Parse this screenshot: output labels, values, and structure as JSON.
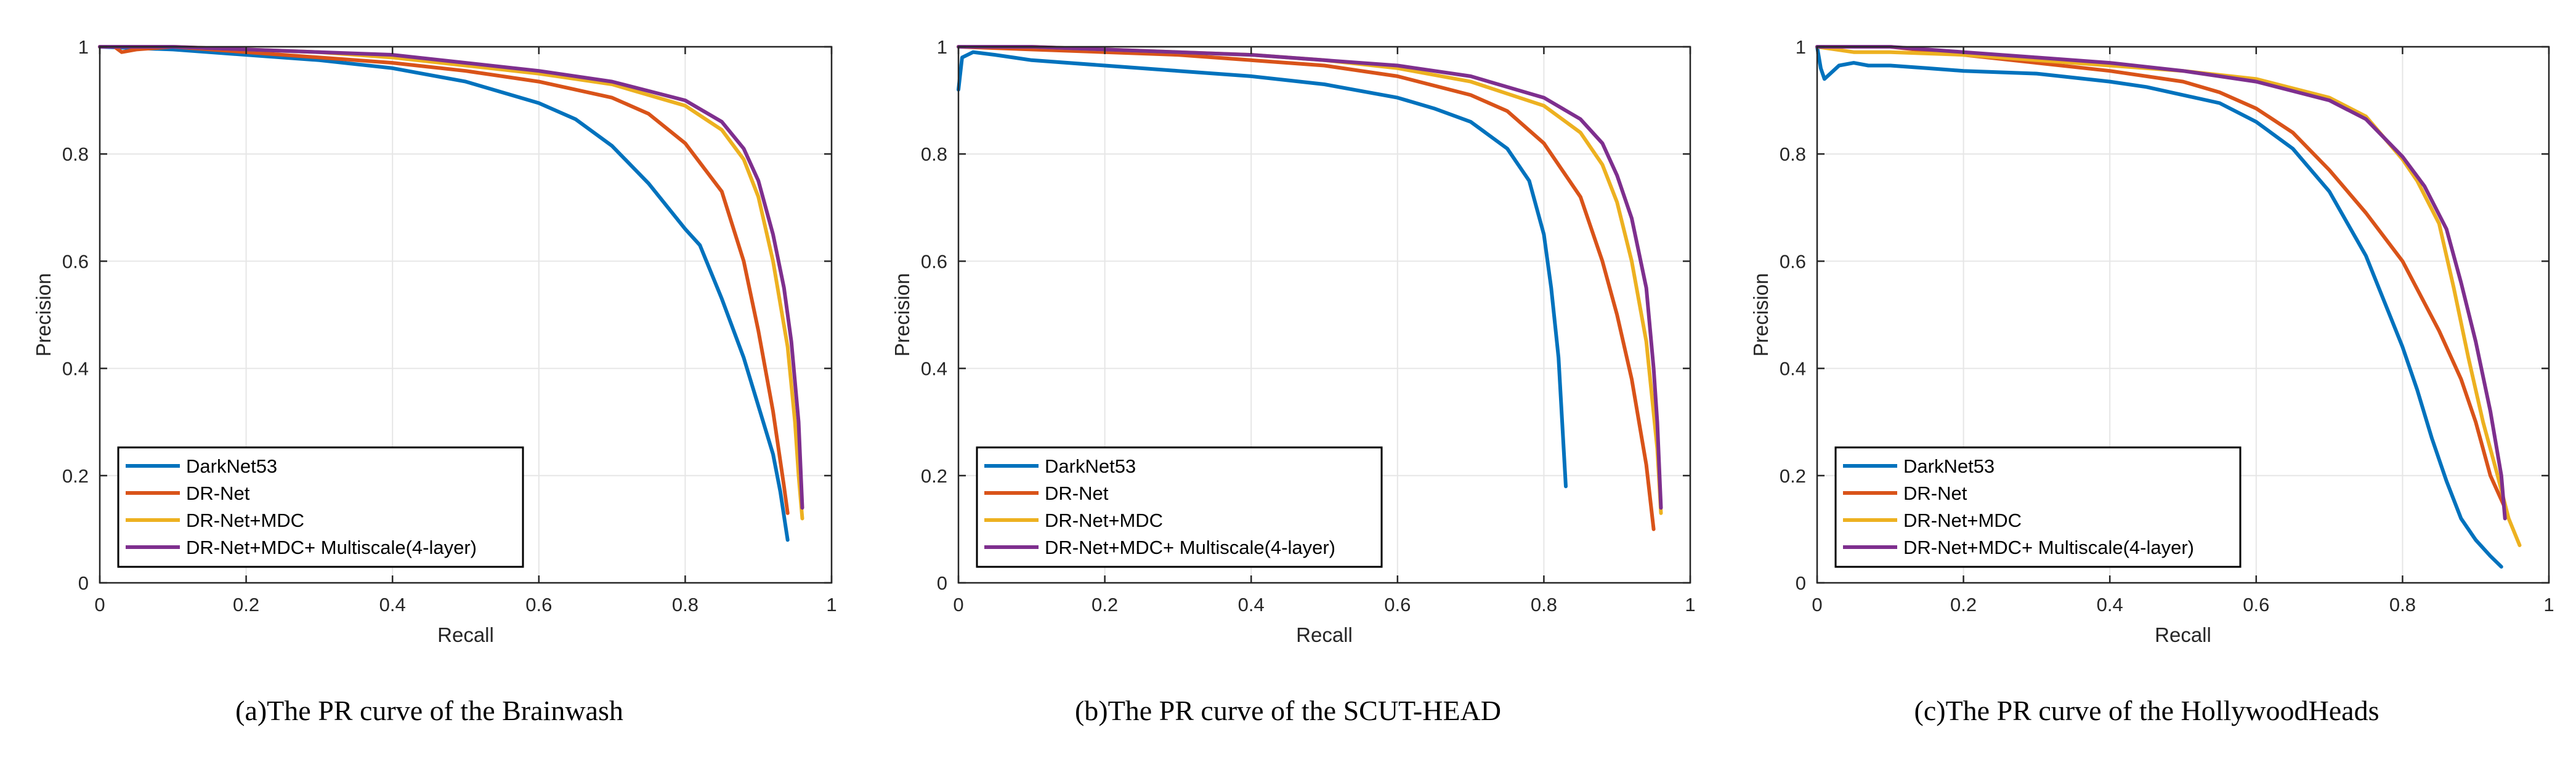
{
  "chart_data": [
    {
      "type": "line",
      "caption": "(a)The PR curve of the Brainwash",
      "xlabel": "Recall",
      "ylabel": "Precision",
      "xlim": [
        0,
        1
      ],
      "ylim": [
        0,
        1
      ],
      "xticks": [
        "0",
        "0.2",
        "0.4",
        "0.6",
        "0.8",
        "1"
      ],
      "yticks": [
        "0",
        "0.2",
        "0.4",
        "0.6",
        "0.8",
        "1"
      ],
      "grid": true,
      "legend": "bottom-left",
      "series": [
        {
          "name": "DarkNet53",
          "color": "#0072BD",
          "points": [
            [
              0,
              1
            ],
            [
              0.1,
              0.995
            ],
            [
              0.2,
              0.985
            ],
            [
              0.3,
              0.975
            ],
            [
              0.4,
              0.96
            ],
            [
              0.5,
              0.935
            ],
            [
              0.6,
              0.895
            ],
            [
              0.65,
              0.865
            ],
            [
              0.7,
              0.815
            ],
            [
              0.75,
              0.745
            ],
            [
              0.8,
              0.66
            ],
            [
              0.82,
              0.63
            ],
            [
              0.85,
              0.53
            ],
            [
              0.88,
              0.42
            ],
            [
              0.9,
              0.33
            ],
            [
              0.92,
              0.24
            ],
            [
              0.93,
              0.17
            ],
            [
              0.94,
              0.08
            ]
          ]
        },
        {
          "name": "DR-Net",
          "color": "#D95319",
          "points": [
            [
              0,
              1
            ],
            [
              0.02,
              1
            ],
            [
              0.03,
              0.99
            ],
            [
              0.05,
              0.995
            ],
            [
              0.1,
              1
            ],
            [
              0.2,
              0.99
            ],
            [
              0.3,
              0.98
            ],
            [
              0.4,
              0.97
            ],
            [
              0.5,
              0.955
            ],
            [
              0.6,
              0.935
            ],
            [
              0.7,
              0.905
            ],
            [
              0.75,
              0.875
            ],
            [
              0.8,
              0.82
            ],
            [
              0.85,
              0.73
            ],
            [
              0.88,
              0.6
            ],
            [
              0.9,
              0.47
            ],
            [
              0.92,
              0.32
            ],
            [
              0.935,
              0.18
            ],
            [
              0.94,
              0.13
            ]
          ]
        },
        {
          "name": "DR-Net+MDC",
          "color": "#EDB120",
          "points": [
            [
              0,
              1
            ],
            [
              0.1,
              1
            ],
            [
              0.2,
              0.995
            ],
            [
              0.3,
              0.99
            ],
            [
              0.4,
              0.98
            ],
            [
              0.5,
              0.965
            ],
            [
              0.6,
              0.95
            ],
            [
              0.7,
              0.93
            ],
            [
              0.8,
              0.89
            ],
            [
              0.85,
              0.845
            ],
            [
              0.88,
              0.79
            ],
            [
              0.9,
              0.72
            ],
            [
              0.92,
              0.6
            ],
            [
              0.94,
              0.44
            ],
            [
              0.95,
              0.3
            ],
            [
              0.955,
              0.2
            ],
            [
              0.96,
              0.12
            ]
          ]
        },
        {
          "name": "DR-Net+MDC+ Multiscale(4-layer)",
          "color": "#7E2F8E",
          "points": [
            [
              0,
              1
            ],
            [
              0.1,
              1
            ],
            [
              0.2,
              0.995
            ],
            [
              0.3,
              0.99
            ],
            [
              0.4,
              0.985
            ],
            [
              0.5,
              0.97
            ],
            [
              0.6,
              0.955
            ],
            [
              0.7,
              0.935
            ],
            [
              0.8,
              0.9
            ],
            [
              0.85,
              0.86
            ],
            [
              0.88,
              0.81
            ],
            [
              0.9,
              0.75
            ],
            [
              0.92,
              0.65
            ],
            [
              0.935,
              0.55
            ],
            [
              0.945,
              0.45
            ],
            [
              0.955,
              0.3
            ],
            [
              0.96,
              0.14
            ]
          ]
        }
      ]
    },
    {
      "type": "line",
      "caption": "(b)The PR curve of the SCUT-HEAD",
      "xlabel": "Recall",
      "ylabel": "Precision",
      "xlim": [
        0,
        1
      ],
      "ylim": [
        0,
        1
      ],
      "xticks": [
        "0",
        "0.2",
        "0.4",
        "0.6",
        "0.8",
        "1"
      ],
      "yticks": [
        "0",
        "0.2",
        "0.4",
        "0.6",
        "0.8",
        "1"
      ],
      "grid": true,
      "legend": "bottom-left",
      "series": [
        {
          "name": "DarkNet53",
          "color": "#0072BD",
          "points": [
            [
              0,
              0.92
            ],
            [
              0.005,
              0.98
            ],
            [
              0.02,
              0.99
            ],
            [
              0.05,
              0.985
            ],
            [
              0.1,
              0.975
            ],
            [
              0.2,
              0.965
            ],
            [
              0.3,
              0.955
            ],
            [
              0.4,
              0.945
            ],
            [
              0.5,
              0.93
            ],
            [
              0.6,
              0.905
            ],
            [
              0.65,
              0.885
            ],
            [
              0.7,
              0.86
            ],
            [
              0.75,
              0.81
            ],
            [
              0.78,
              0.75
            ],
            [
              0.8,
              0.65
            ],
            [
              0.81,
              0.55
            ],
            [
              0.82,
              0.42
            ],
            [
              0.825,
              0.3
            ],
            [
              0.83,
              0.18
            ]
          ]
        },
        {
          "name": "DR-Net",
          "color": "#D95319",
          "points": [
            [
              0,
              1
            ],
            [
              0.1,
              0.995
            ],
            [
              0.2,
              0.99
            ],
            [
              0.3,
              0.985
            ],
            [
              0.4,
              0.975
            ],
            [
              0.5,
              0.965
            ],
            [
              0.6,
              0.945
            ],
            [
              0.7,
              0.91
            ],
            [
              0.75,
              0.88
            ],
            [
              0.8,
              0.82
            ],
            [
              0.85,
              0.72
            ],
            [
              0.88,
              0.6
            ],
            [
              0.9,
              0.5
            ],
            [
              0.92,
              0.38
            ],
            [
              0.94,
              0.22
            ],
            [
              0.95,
              0.1
            ]
          ]
        },
        {
          "name": "DR-Net+MDC",
          "color": "#EDB120",
          "points": [
            [
              0,
              1
            ],
            [
              0.1,
              1
            ],
            [
              0.2,
              0.995
            ],
            [
              0.3,
              0.99
            ],
            [
              0.4,
              0.985
            ],
            [
              0.5,
              0.975
            ],
            [
              0.6,
              0.96
            ],
            [
              0.7,
              0.935
            ],
            [
              0.8,
              0.89
            ],
            [
              0.85,
              0.84
            ],
            [
              0.88,
              0.78
            ],
            [
              0.9,
              0.71
            ],
            [
              0.92,
              0.6
            ],
            [
              0.94,
              0.45
            ],
            [
              0.955,
              0.25
            ],
            [
              0.96,
              0.13
            ]
          ]
        },
        {
          "name": "DR-Net+MDC+ Multiscale(4-layer)",
          "color": "#7E2F8E",
          "points": [
            [
              0,
              1
            ],
            [
              0.1,
              1
            ],
            [
              0.2,
              0.995
            ],
            [
              0.3,
              0.99
            ],
            [
              0.4,
              0.985
            ],
            [
              0.5,
              0.975
            ],
            [
              0.6,
              0.965
            ],
            [
              0.7,
              0.945
            ],
            [
              0.8,
              0.905
            ],
            [
              0.85,
              0.865
            ],
            [
              0.88,
              0.82
            ],
            [
              0.9,
              0.76
            ],
            [
              0.92,
              0.68
            ],
            [
              0.94,
              0.55
            ],
            [
              0.95,
              0.4
            ],
            [
              0.955,
              0.3
            ],
            [
              0.96,
              0.14
            ]
          ]
        }
      ]
    },
    {
      "type": "line",
      "caption": "(c)The PR curve of the HollywoodHeads",
      "xlabel": "Recall",
      "ylabel": "Precision",
      "xlim": [
        0,
        1
      ],
      "ylim": [
        0,
        1
      ],
      "xticks": [
        "0",
        "0.2",
        "0.4",
        "0.6",
        "0.8",
        "1"
      ],
      "yticks": [
        "0",
        "0.2",
        "0.4",
        "0.6",
        "0.8",
        "1"
      ],
      "grid": true,
      "legend": "bottom-left",
      "series": [
        {
          "name": "DarkNet53",
          "color": "#0072BD",
          "points": [
            [
              0,
              1
            ],
            [
              0.005,
              0.96
            ],
            [
              0.01,
              0.94
            ],
            [
              0.03,
              0.965
            ],
            [
              0.05,
              0.97
            ],
            [
              0.07,
              0.965
            ],
            [
              0.1,
              0.965
            ],
            [
              0.15,
              0.96
            ],
            [
              0.2,
              0.955
            ],
            [
              0.3,
              0.95
            ],
            [
              0.4,
              0.935
            ],
            [
              0.45,
              0.925
            ],
            [
              0.5,
              0.91
            ],
            [
              0.55,
              0.895
            ],
            [
              0.6,
              0.86
            ],
            [
              0.65,
              0.81
            ],
            [
              0.7,
              0.73
            ],
            [
              0.75,
              0.61
            ],
            [
              0.8,
              0.44
            ],
            [
              0.82,
              0.36
            ],
            [
              0.84,
              0.27
            ],
            [
              0.86,
              0.19
            ],
            [
              0.88,
              0.12
            ],
            [
              0.9,
              0.08
            ],
            [
              0.92,
              0.05
            ],
            [
              0.935,
              0.03
            ]
          ]
        },
        {
          "name": "DR-Net",
          "color": "#D95319",
          "points": [
            [
              0,
              1
            ],
            [
              0.05,
              1
            ],
            [
              0.1,
              1
            ],
            [
              0.2,
              0.985
            ],
            [
              0.3,
              0.97
            ],
            [
              0.4,
              0.955
            ],
            [
              0.5,
              0.935
            ],
            [
              0.55,
              0.915
            ],
            [
              0.6,
              0.885
            ],
            [
              0.65,
              0.84
            ],
            [
              0.7,
              0.77
            ],
            [
              0.75,
              0.69
            ],
            [
              0.8,
              0.6
            ],
            [
              0.85,
              0.47
            ],
            [
              0.88,
              0.38
            ],
            [
              0.9,
              0.3
            ],
            [
              0.92,
              0.2
            ],
            [
              0.94,
              0.14
            ]
          ]
        },
        {
          "name": "DR-Net+MDC",
          "color": "#EDB120",
          "points": [
            [
              0,
              1
            ],
            [
              0.05,
              0.99
            ],
            [
              0.1,
              0.99
            ],
            [
              0.2,
              0.985
            ],
            [
              0.3,
              0.975
            ],
            [
              0.4,
              0.965
            ],
            [
              0.5,
              0.955
            ],
            [
              0.6,
              0.94
            ],
            [
              0.7,
              0.905
            ],
            [
              0.75,
              0.87
            ],
            [
              0.8,
              0.79
            ],
            [
              0.82,
              0.75
            ],
            [
              0.85,
              0.67
            ],
            [
              0.87,
              0.55
            ],
            [
              0.89,
              0.42
            ],
            [
              0.91,
              0.3
            ],
            [
              0.93,
              0.2
            ],
            [
              0.945,
              0.12
            ],
            [
              0.96,
              0.07
            ]
          ]
        },
        {
          "name": "DR-Net+MDC+ Multiscale(4-layer)",
          "color": "#7E2F8E",
          "points": [
            [
              0,
              1
            ],
            [
              0.1,
              1
            ],
            [
              0.2,
              0.99
            ],
            [
              0.3,
              0.98
            ],
            [
              0.4,
              0.97
            ],
            [
              0.5,
              0.955
            ],
            [
              0.6,
              0.935
            ],
            [
              0.7,
              0.9
            ],
            [
              0.75,
              0.865
            ],
            [
              0.8,
              0.795
            ],
            [
              0.83,
              0.74
            ],
            [
              0.86,
              0.66
            ],
            [
              0.88,
              0.56
            ],
            [
              0.9,
              0.45
            ],
            [
              0.92,
              0.32
            ],
            [
              0.935,
              0.2
            ],
            [
              0.94,
              0.12
            ]
          ]
        }
      ]
    }
  ]
}
